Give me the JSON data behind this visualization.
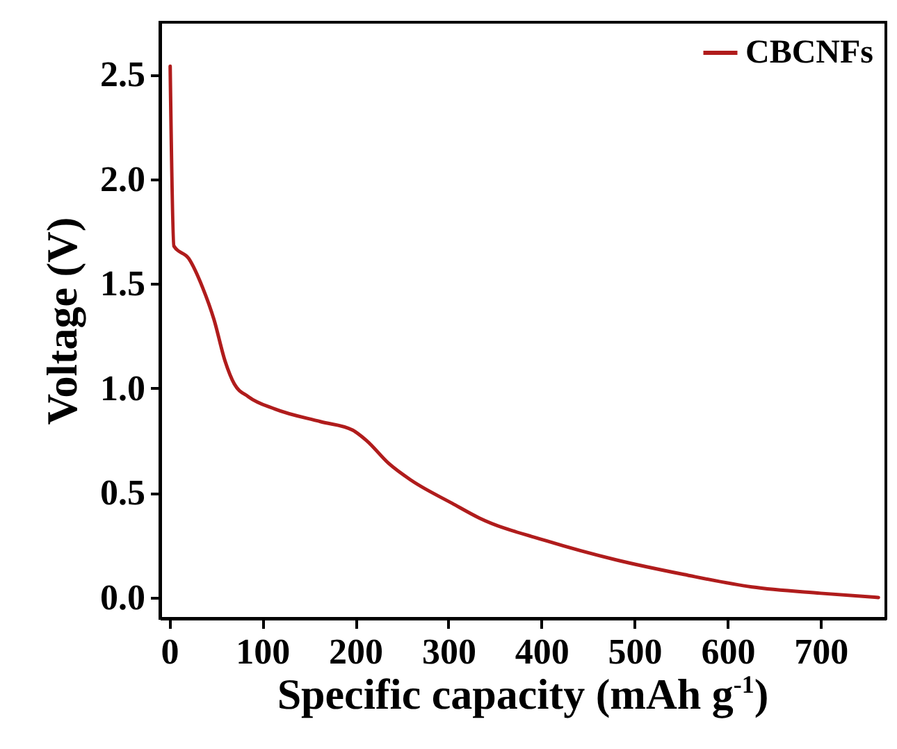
{
  "chart_data": {
    "type": "line",
    "xlabel": "Specific capacity (mAh g$^{-1}$)",
    "ylabel": "Voltage (V)",
    "xlim": [
      -10,
      770
    ],
    "ylim": [
      -0.1,
      2.75
    ],
    "xticks": [
      0,
      100,
      200,
      300,
      400,
      500,
      600,
      700
    ],
    "yticks": [
      {
        "value": 0,
        "label": "0.0"
      },
      0.5,
      {
        "value": 1,
        "label": "1.0"
      },
      1.5,
      {
        "value": 2,
        "label": "2.0"
      },
      2.5
    ],
    "legend": "top right",
    "grid": false,
    "line_style": "solid",
    "series": [
      {
        "name": "CBCNFs",
        "color": "#b01c1c",
        "x": [
          1,
          5,
          21,
          36,
          48,
          60,
          70,
          85,
          114,
          163,
          197,
          212,
          236,
          260,
          304,
          333,
          406,
          480,
          553,
          626,
          700,
          762
        ],
        "values": [
          2.54,
          1.68,
          1.62,
          1.48,
          1.33,
          1.13,
          1.02,
          0.96,
          0.9,
          0.84,
          0.8,
          0.75,
          0.64,
          0.56,
          0.45,
          0.38,
          0.27,
          0.18,
          0.11,
          0.05,
          0.02,
          0.0
        ]
      }
    ]
  }
}
